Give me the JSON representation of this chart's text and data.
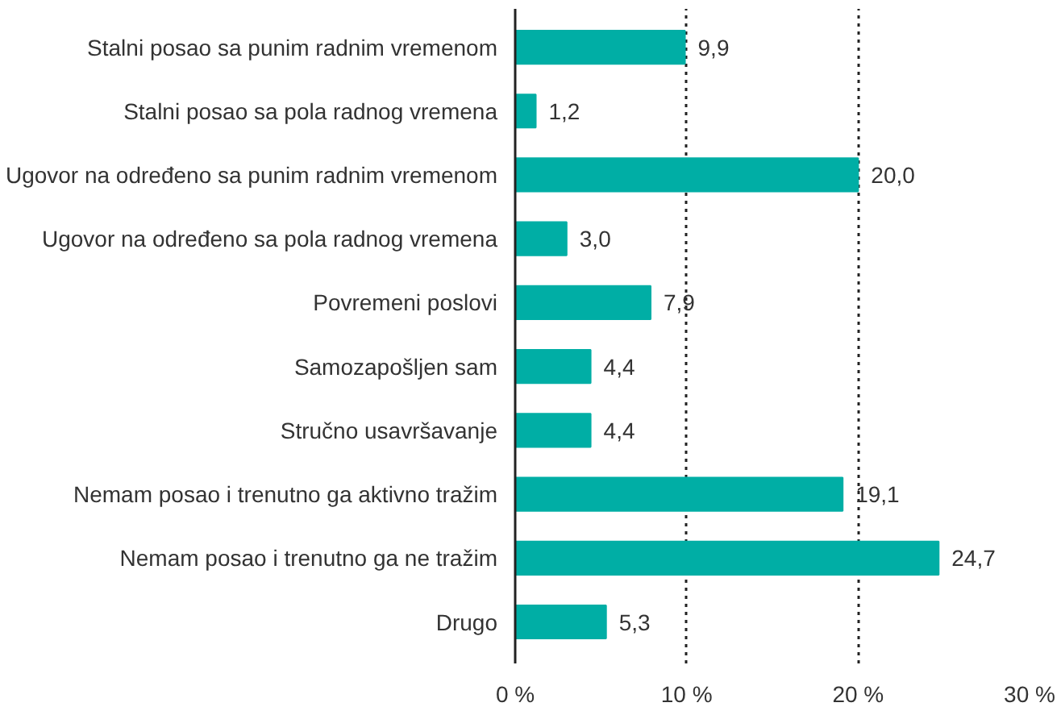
{
  "chart_data": {
    "type": "bar",
    "orientation": "horizontal",
    "categories": [
      "Stalni posao sa punim radnim vremenom",
      "Stalni posao sa pola radnog vremena",
      "Ugovor na određeno sa punim radnim vremenom",
      "Ugovor na određeno sa pola radnog vremena",
      "Povremeni poslovi",
      "Samozapošljen sam",
      "Stručno usavršavanje",
      "Nemam posao i trenutno ga aktivno tražim",
      "Nemam posao i trenutno ga ne tražim",
      "Drugo"
    ],
    "values": [
      9.9,
      1.2,
      20.0,
      3.0,
      7.9,
      4.4,
      4.4,
      19.1,
      24.7,
      5.3
    ],
    "value_labels": [
      "9,9",
      "1,2",
      "20,0",
      "3,0",
      "7,9",
      "4,4",
      "4,4",
      "19,1",
      "24,7",
      "5,3"
    ],
    "color": "#00aea5",
    "xlim": [
      0,
      30
    ],
    "xticks": [
      {
        "value": 0,
        "label": "0 %"
      },
      {
        "value": 10,
        "label": "10 %"
      },
      {
        "value": 20,
        "label": "20 %"
      },
      {
        "value": 30,
        "label": "30 %"
      }
    ],
    "grid": "x",
    "line_style": "dotted"
  }
}
